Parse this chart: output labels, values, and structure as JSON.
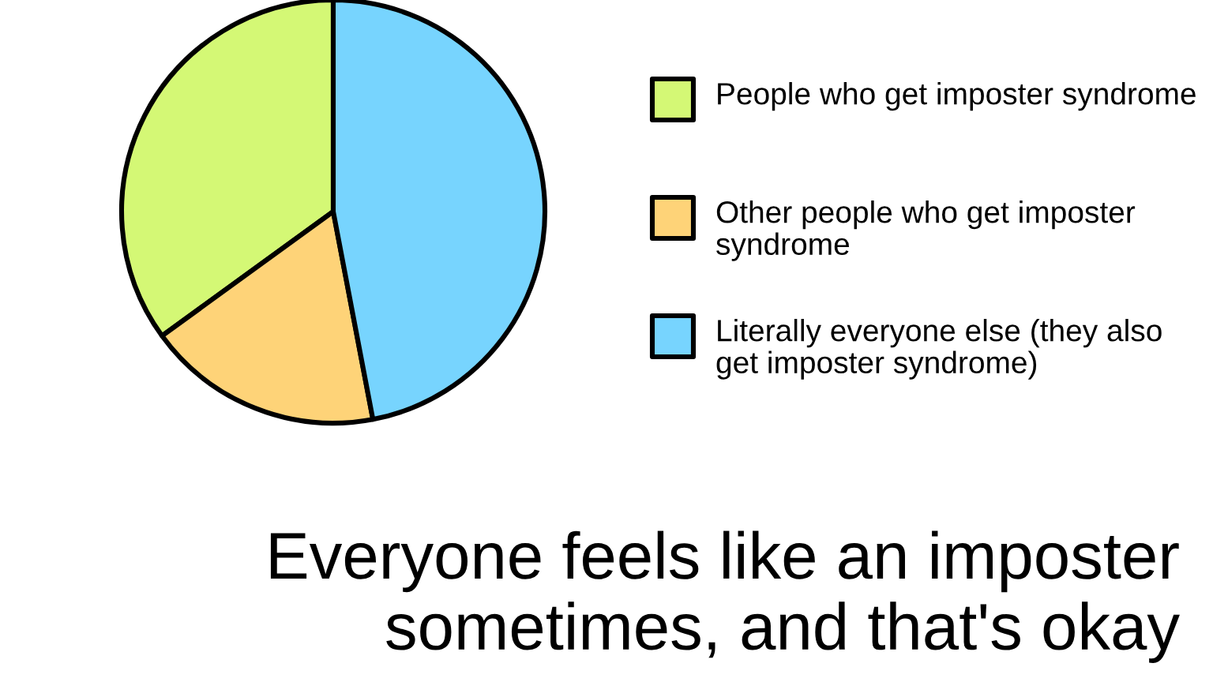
{
  "chart_data": {
    "type": "pie",
    "title": "Everyone feels like an imposter sometimes, and that's okay",
    "categories": [
      "People who get imposter syndrome",
      "Other people who get imposter syndrome",
      "Literally everyone else (they also get imposter syndrome)"
    ],
    "values": [
      35,
      18,
      47
    ],
    "colors": [
      "#d4f875",
      "#fed378",
      "#77d4fe"
    ],
    "legend": "right"
  }
}
